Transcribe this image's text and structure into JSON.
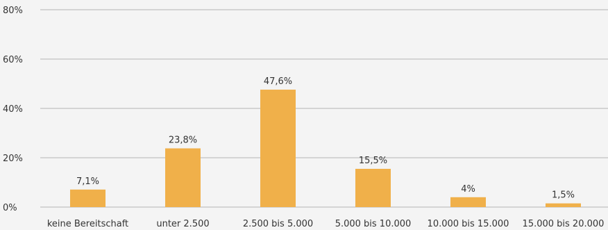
{
  "chart_data": {
    "type": "bar",
    "title": "",
    "xlabel": "",
    "ylabel": "",
    "categories": [
      "keine Bereitschaft",
      "unter 2.500",
      "2.500 bis 5.000",
      "5.000 bis 10.000",
      "10.000 bis 15.000",
      "15.000 bis 20.000"
    ],
    "values": [
      7.1,
      23.8,
      47.6,
      15.5,
      4,
      1.5
    ],
    "data_labels": [
      "7,1%",
      "23,8%",
      "47,6%",
      "15,5%",
      "4%",
      "1,5%"
    ],
    "ylim": [
      0,
      80
    ],
    "y_ticks": [
      0,
      20,
      40,
      60,
      80
    ],
    "y_tick_labels": [
      "0%",
      "20%",
      "40%",
      "60%",
      "80%"
    ],
    "grid": true,
    "legend": "none",
    "bar_color": "#f0b04a"
  }
}
